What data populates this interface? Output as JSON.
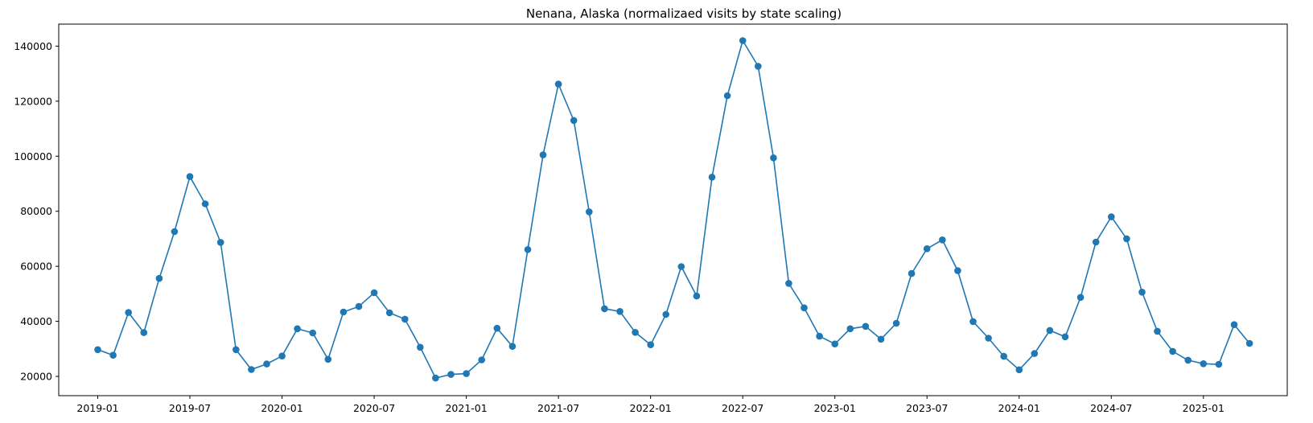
{
  "chart_data": {
    "type": "line",
    "title": "Nenana, Alaska (normalizaed visits by state scaling)",
    "xlabel": "",
    "ylabel": "",
    "x_tick_labels": [
      "2019-01",
      "2019-07",
      "2020-01",
      "2020-07",
      "2021-01",
      "2021-07",
      "2022-01",
      "2022-07",
      "2023-01",
      "2023-07",
      "2024-01",
      "2024-07",
      "2025-01"
    ],
    "y_tick_labels": [
      "20000",
      "40000",
      "60000",
      "80000",
      "100000",
      "120000",
      "140000"
    ],
    "ylim": [
      13000,
      148000
    ],
    "xlim": [
      "2018-10-15",
      "2025-06-15"
    ],
    "grid": false,
    "color": "#1f77b4",
    "marker": "circle",
    "series": [
      {
        "x": [
          "2019-01",
          "2019-02",
          "2019-03",
          "2019-04",
          "2019-05",
          "2019-06",
          "2019-07",
          "2019-08",
          "2019-09",
          "2019-10",
          "2019-11",
          "2019-12",
          "2020-01",
          "2020-02",
          "2020-03",
          "2020-04",
          "2020-05",
          "2020-06",
          "2020-07",
          "2020-08",
          "2020-09",
          "2020-10",
          "2020-11",
          "2020-12",
          "2021-01",
          "2021-02",
          "2021-03",
          "2021-04",
          "2021-05",
          "2021-06",
          "2021-07",
          "2021-08",
          "2021-09",
          "2021-10",
          "2021-11",
          "2021-12",
          "2022-01",
          "2022-02",
          "2022-03",
          "2022-04",
          "2022-05",
          "2022-06",
          "2022-07",
          "2022-08",
          "2022-09",
          "2022-10",
          "2022-11",
          "2022-12",
          "2023-01",
          "2023-02",
          "2023-03",
          "2023-04",
          "2023-05",
          "2023-06",
          "2023-07",
          "2023-08",
          "2023-09",
          "2023-10",
          "2023-11",
          "2023-12",
          "2024-01",
          "2024-02",
          "2024-03",
          "2024-04",
          "2024-05",
          "2024-06",
          "2024-07",
          "2024-08",
          "2024-09",
          "2024-10",
          "2024-11",
          "2024-12",
          "2025-01",
          "2025-02",
          "2025-03",
          "2025-04"
        ],
        "values": [
          29700,
          27700,
          43200,
          35900,
          55600,
          72600,
          92600,
          82700,
          68700,
          29700,
          22500,
          24500,
          27400,
          37300,
          35800,
          26200,
          43400,
          45400,
          50400,
          43100,
          40800,
          30600,
          19400,
          20700,
          21000,
          26000,
          37500,
          30900,
          66100,
          100500,
          126200,
          113000,
          79800,
          44600,
          43600,
          36000,
          31500,
          42500,
          59900,
          49200,
          92400,
          122000,
          142000,
          132700,
          99400,
          53800,
          44900,
          34600,
          31800,
          37300,
          38200,
          33500,
          39300,
          57400,
          66400,
          69600,
          58400,
          39900,
          33900,
          27300,
          22400,
          28300,
          36700,
          34400,
          48700,
          68800,
          78000,
          70000,
          50600,
          36400,
          29100,
          25900,
          24600,
          24400,
          38800,
          32000
        ]
      }
    ]
  }
}
